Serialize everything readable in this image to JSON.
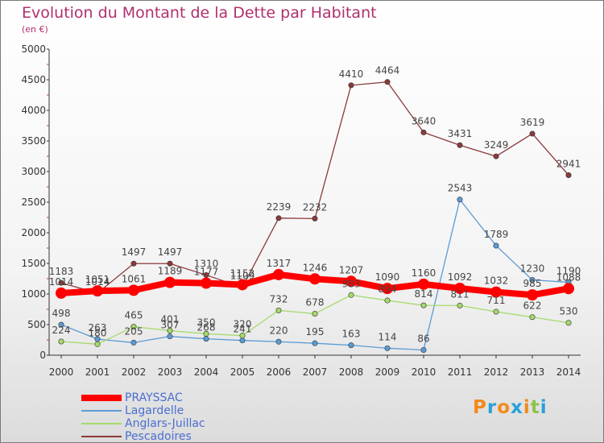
{
  "title": "Evolution du Montant de la Dette par Habitant",
  "subtitle": "(en €)",
  "logo": {
    "letters": [
      "P",
      "r",
      "o",
      "x",
      "i",
      "t",
      "i"
    ],
    "colors": [
      "#f28a1a",
      "#2aa0d8",
      "#f28a1a",
      "#2aa0d8",
      "#f28a1a",
      "#8bc34a",
      "#2aa0d8"
    ]
  },
  "chart_data": {
    "type": "line",
    "x": [
      "2000",
      "2001",
      "2002",
      "2003",
      "2004",
      "2005",
      "2006",
      "2007",
      "2008",
      "2009",
      "2010",
      "2011",
      "2012",
      "2013",
      "2014"
    ],
    "ylim": [
      0,
      5000
    ],
    "yticks": [
      0,
      500,
      1000,
      1500,
      2000,
      2500,
      3000,
      3500,
      4000,
      4500,
      5000
    ],
    "grid": false,
    "legend_position": "bottom-left",
    "series": [
      {
        "name": "PRAYSSAC",
        "color": "#ff0000",
        "values": [
          1014,
          1051,
          1061,
          1189,
          1177,
          1152,
          1317,
          1246,
          1207,
          1090,
          1160,
          1092,
          1032,
          985,
          1088
        ],
        "labels": [
          "1014",
          "1051",
          "1061",
          "1189",
          "1177",
          "1152",
          "1317",
          "1246",
          "1207",
          "1090",
          "1160",
          "1092",
          "1032",
          "985",
          "1088"
        ]
      },
      {
        "name": "Lagardelle",
        "color": "#5b9bd5",
        "values": [
          498,
          263,
          205,
          307,
          268,
          241,
          220,
          195,
          163,
          114,
          86,
          2543,
          1789,
          1230,
          1190
        ],
        "labels": [
          "498",
          "263",
          "205",
          "307",
          "268",
          "241",
          "220",
          "195",
          "163",
          "114",
          "86",
          "2543",
          "1789",
          "1230",
          "1190"
        ]
      },
      {
        "name": "Anglars-Juillac",
        "color": "#a6d96a",
        "values": [
          224,
          180,
          465,
          401,
          350,
          320,
          732,
          678,
          983,
          894,
          814,
          811,
          711,
          622,
          530
        ],
        "labels": [
          "224",
          "180",
          "465",
          "401",
          "350",
          "320",
          "732",
          "678",
          "983",
          "894",
          "814",
          "811",
          "711",
          "622",
          "530"
        ]
      },
      {
        "name": "Pescadoires",
        "color": "#8b3a3a",
        "values": [
          1183,
          1014,
          1497,
          1497,
          1310,
          1109,
          2239,
          2232,
          4410,
          4464,
          3640,
          3431,
          3249,
          3619,
          2941
        ],
        "labels": [
          "1183",
          "1014",
          "1497",
          "1497",
          "1310",
          "1109",
          "2239",
          "2232",
          "4410",
          "4464",
          "3640",
          "3431",
          "3249",
          "3619",
          "2941"
        ]
      }
    ]
  }
}
